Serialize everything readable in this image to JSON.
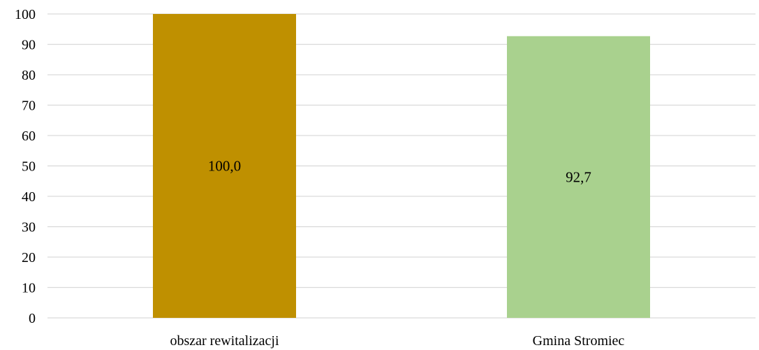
{
  "chart_data": {
    "type": "bar",
    "categories": [
      "obszar rewitalizacji",
      "Gmina Stromiec"
    ],
    "values": [
      100.0,
      92.7
    ],
    "data_labels": [
      "100,0",
      "92,7"
    ],
    "colors": [
      "#bf9000",
      "#a9d18e"
    ],
    "title": "",
    "xlabel": "",
    "ylabel": "",
    "ylim": [
      0,
      100
    ],
    "yticks": [
      0,
      10,
      20,
      30,
      40,
      50,
      60,
      70,
      80,
      90,
      100
    ],
    "ytick_labels": [
      "0",
      "10",
      "20",
      "30",
      "40",
      "50",
      "60",
      "70",
      "80",
      "90",
      "100"
    ],
    "grid": true,
    "legend": "none"
  }
}
